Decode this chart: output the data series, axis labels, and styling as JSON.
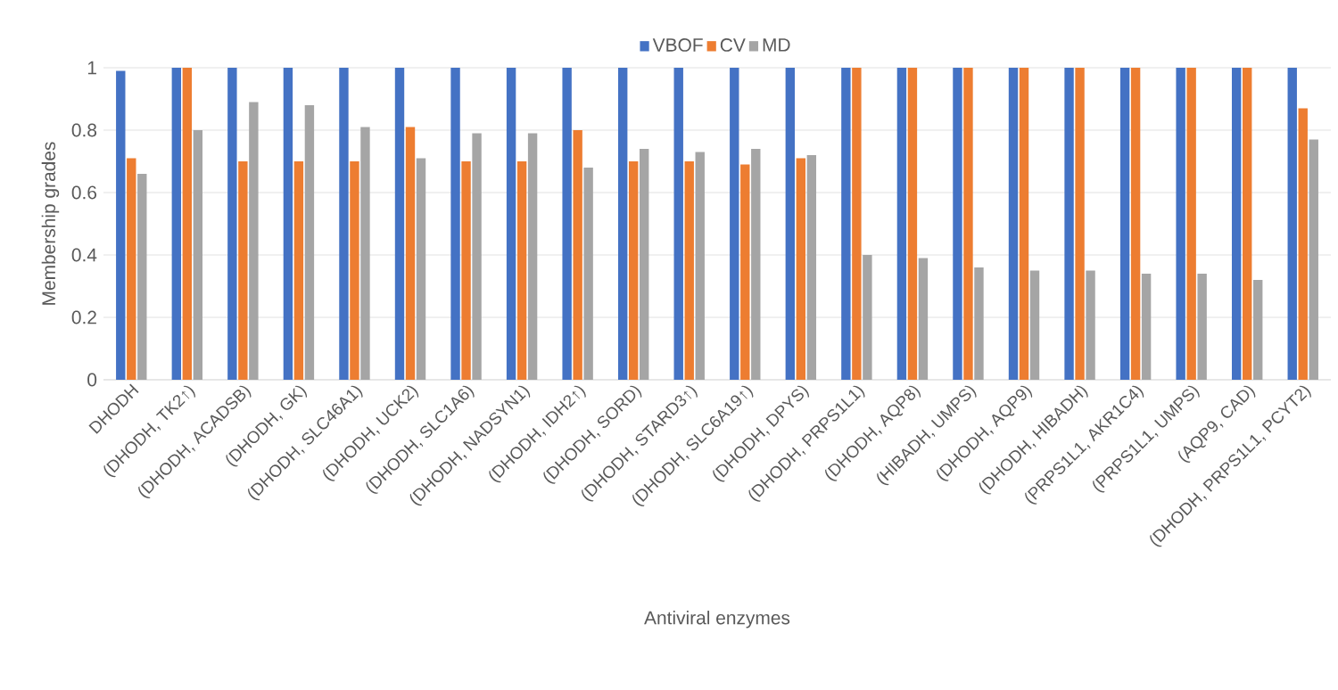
{
  "chart_data": {
    "type": "bar",
    "xlabel": "Antiviral enzymes",
    "ylabel": "Membership grades",
    "categories": [
      "DHODH",
      "(DHODH, TK2↑)",
      "(DHODH, ACADSB)",
      "(DHODH, GK)",
      "(DHODH, SLC46A1)",
      "(DHODH, UCK2)",
      "(DHODH, SLC1A6)",
      "(DHODH, NADSYN1)",
      "(DHODH, IDH2↑)",
      "(DHODH, SORD)",
      "(DHODH, STARD3↑)",
      "(DHODH, SLC6A19↑)",
      "(DHODH, DPYS)",
      "(DHODH, PRPS1L1)",
      "(DHODH, AQP8)",
      "(HIBADH, UMPS)",
      "(DHODH, AQP9)",
      "(DHODH, HIBADH)",
      "(PRPS1L1, AKR1C4)",
      "(PRPS1L1, UMPS)",
      "(AQP9, CAD)",
      "(DHODH, PRPS1L1, PCYT2)"
    ],
    "series": [
      {
        "name": "VBOF",
        "color": "#4472c4",
        "values": [
          0.99,
          1,
          1,
          1,
          1,
          1,
          1,
          1,
          1,
          1,
          1,
          1,
          1,
          1,
          1,
          1,
          1,
          1,
          1,
          1,
          1,
          1
        ]
      },
      {
        "name": "CV",
        "color": "#ed7d31",
        "values": [
          0.71,
          1,
          0.7,
          0.7,
          0.7,
          0.81,
          0.7,
          0.7,
          0.8,
          0.7,
          0.7,
          0.69,
          0.71,
          1,
          1,
          1,
          1,
          1,
          1,
          1,
          1,
          0.87
        ]
      },
      {
        "name": "MD",
        "color": "#a5a5a5",
        "values": [
          0.66,
          0.8,
          0.89,
          0.88,
          0.81,
          0.71,
          0.79,
          0.79,
          0.68,
          0.74,
          0.73,
          0.74,
          0.72,
          0.4,
          0.39,
          0.36,
          0.35,
          0.35,
          0.34,
          0.34,
          0.32,
          0.77
        ]
      }
    ],
    "ylim": [
      0,
      1
    ],
    "yticks": [
      0,
      0.2,
      0.4,
      0.6,
      0.8,
      1
    ],
    "grid": "y",
    "legend": "top"
  }
}
